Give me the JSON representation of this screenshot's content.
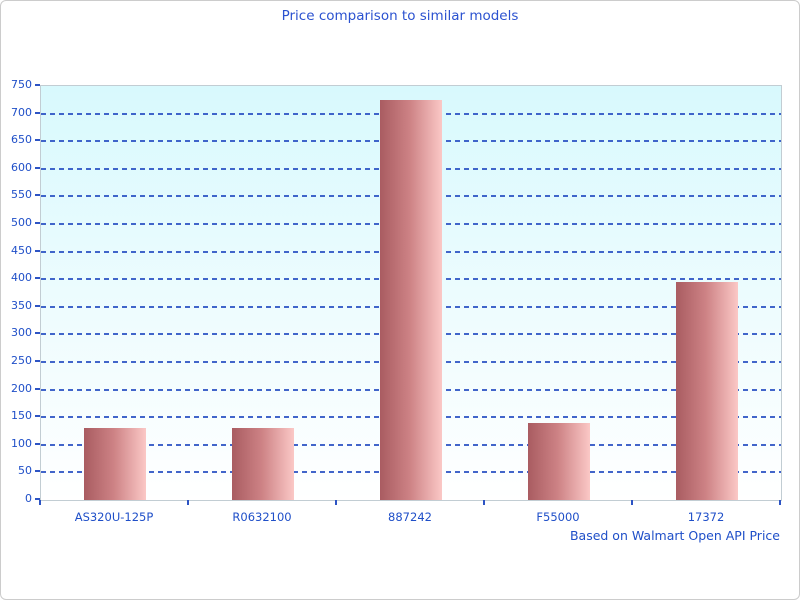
{
  "chart_data": {
    "type": "bar",
    "title": "Price comparison to similar models",
    "footnote": "Based on Walmart Open API Price",
    "categories": [
      "AS320U-125P",
      "R0632100",
      "887242",
      "F55000",
      "17372"
    ],
    "values": [
      130,
      130,
      725,
      140,
      395
    ],
    "xlabel": "",
    "ylabel": "",
    "ylim": [
      0,
      750
    ],
    "ytick_step": 50,
    "grid": "horizontal-dashed",
    "legend": "none",
    "colors": {
      "title_text": "#2b52d0",
      "axis_label_text": "#1f4fc8",
      "gridline": "#2d54c4",
      "bar_gradient_left": "#a95c61",
      "bar_gradient_mid": "#cd8285",
      "bar_gradient_right": "#fbc8c6",
      "plot_bg_top": "#d8f9fd",
      "plot_bg_bottom": "#ffffff",
      "plot_border": "#c2cdd3",
      "outer_border": "#cccccc"
    }
  }
}
